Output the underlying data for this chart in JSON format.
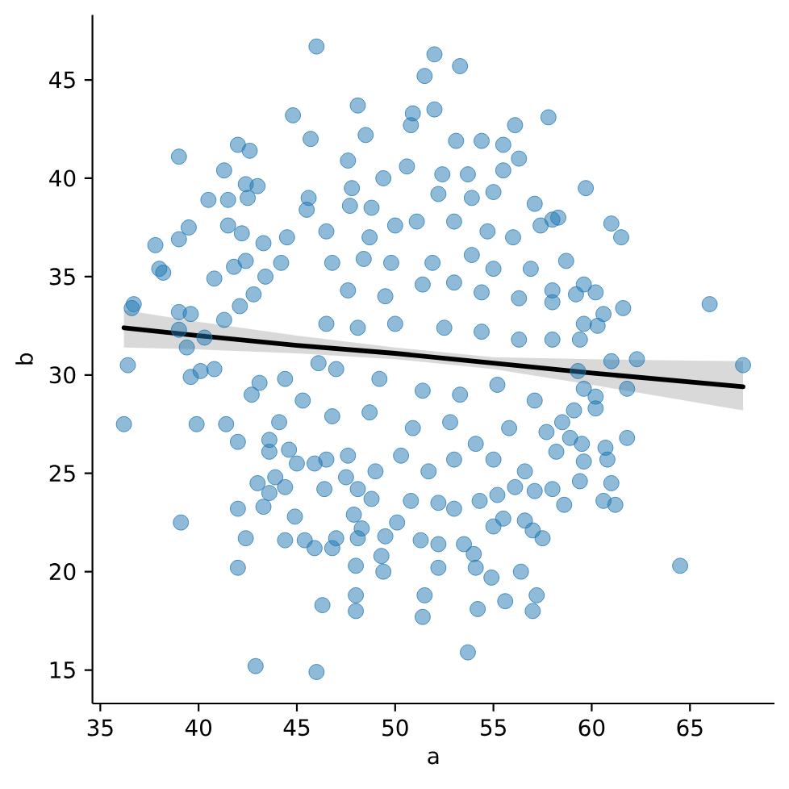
{
  "chart_data": {
    "type": "scatter",
    "xlabel": "a",
    "ylabel": "b",
    "xlim": [
      34.6,
      69.3
    ],
    "ylim": [
      13.3,
      48.3
    ],
    "xticks": [
      35,
      40,
      45,
      50,
      55,
      60,
      65
    ],
    "yticks": [
      15,
      20,
      25,
      30,
      35,
      40,
      45
    ],
    "marker": "circle",
    "series": [
      {
        "color": "#1f77b4",
        "x": [
          46.0,
          44.8,
          45.7,
          39.0,
          42.0,
          42.6,
          41.3,
          42.4,
          43.0,
          40.5,
          41.5,
          42.5,
          45.6,
          41.5,
          42.2,
          39.5,
          39.0,
          37.8,
          43.3,
          44.5,
          38.0,
          38.2,
          36.7,
          36.6,
          39.0,
          39.6,
          40.8,
          41.8,
          42.4,
          44.2,
          43.4,
          41.3,
          39.0,
          40.3,
          39.4,
          42.1,
          42.8,
          45.5,
          52.0,
          53.3,
          51.5,
          48.1,
          50.9,
          52.0,
          50.8,
          48.5,
          53.1,
          54.4,
          55.5,
          56.1,
          57.8,
          56.3,
          47.6,
          50.6,
          52.4,
          53.7,
          55.5,
          47.8,
          49.4,
          47.7,
          48.8,
          52.2,
          57.1,
          55.0,
          53.9,
          53.9,
          57.4,
          58.0,
          59.7,
          61.0,
          61.5,
          58.3,
          58.7,
          59.6,
          60.2,
          59.2,
          60.6,
          61.6,
          66.0,
          59.6,
          60.3,
          59.4,
          58.0,
          67.7,
          62.3,
          61.0,
          61.8,
          59.6,
          60.2,
          60.2,
          59.1,
          58.5,
          61.8,
          60.7,
          60.8,
          59.5,
          58.9,
          58.2,
          59.6,
          59.4,
          61.0,
          60.6,
          61.2,
          58.6,
          64.5,
          58.0,
          59.3,
          36.4,
          36.2,
          39.9,
          41.4,
          39.6,
          40.1,
          40.8,
          42.0,
          39.1,
          42.0,
          43.0,
          43.3,
          42.4,
          42.0,
          42.9,
          46.0,
          44.4,
          45.4,
          45.9,
          44.9,
          43.9,
          44.4,
          43.6,
          43.6,
          44.6,
          45.0,
          45.9,
          46.3,
          43.6,
          44.1,
          42.7,
          53.7,
          48.0,
          48.0,
          51.5,
          51.4,
          54.2,
          55.6,
          57.0,
          57.2,
          52.2,
          54.1,
          54.9,
          56.4,
          48.0,
          49.4,
          49.3,
          51.3,
          52.2,
          53.5,
          54.0,
          46.8,
          47.0,
          48.1,
          49.5,
          50.1,
          47.9,
          48.3,
          55.0,
          55.5,
          56.6,
          57.0,
          57.5,
          52.2,
          53.0,
          54.3,
          55.2,
          56.1,
          57.1,
          50.8,
          48.8,
          48.1,
          47.5,
          46.4,
          46.5,
          48.7,
          50.0,
          51.1,
          53.0,
          54.7,
          56.0,
          46.8,
          48.4,
          49.8,
          51.9,
          55.0,
          56.9,
          47.6,
          49.5,
          51.4,
          53.0,
          54.4,
          56.3,
          58.0,
          46.5,
          48.1,
          50.0,
          52.5,
          54.4,
          56.3,
          58.0,
          47.0,
          49.2,
          51.4,
          53.3,
          55.2,
          57.1,
          46.8,
          48.7,
          50.9,
          52.8,
          54.1,
          55.8,
          57.7,
          47.6,
          50.3,
          51.7,
          53.0,
          55.0,
          56.6,
          49.0,
          46.5,
          44.4,
          45.3,
          46.1,
          43.1
        ],
        "values": [
          46.7,
          43.2,
          42.0,
          41.1,
          41.7,
          41.4,
          40.4,
          39.7,
          39.6,
          38.9,
          38.9,
          39.0,
          39.0,
          37.6,
          37.2,
          37.5,
          36.9,
          36.6,
          36.7,
          37.0,
          35.4,
          35.2,
          33.6,
          33.4,
          33.2,
          33.1,
          34.9,
          35.5,
          35.8,
          35.7,
          35.0,
          32.8,
          32.3,
          31.9,
          31.4,
          33.5,
          34.1,
          38.4,
          46.3,
          45.7,
          45.2,
          43.7,
          43.3,
          43.5,
          42.7,
          42.2,
          41.9,
          41.9,
          41.7,
          42.7,
          43.1,
          41.0,
          40.9,
          40.6,
          40.2,
          40.2,
          40.4,
          39.5,
          40.0,
          38.6,
          38.5,
          39.2,
          38.7,
          39.3,
          39.0,
          36.1,
          37.6,
          37.9,
          39.5,
          37.7,
          37.0,
          38.0,
          35.8,
          34.6,
          34.2,
          34.1,
          33.1,
          33.4,
          33.6,
          32.6,
          32.5,
          31.8,
          33.7,
          30.5,
          30.8,
          30.7,
          29.3,
          29.3,
          28.9,
          28.3,
          28.2,
          27.6,
          26.8,
          26.3,
          25.7,
          26.5,
          26.8,
          26.1,
          25.6,
          24.6,
          24.5,
          23.6,
          23.4,
          23.4,
          20.3,
          24.2,
          30.2,
          30.5,
          27.5,
          27.5,
          27.5,
          29.9,
          30.2,
          30.3,
          26.6,
          22.5,
          23.2,
          24.5,
          23.3,
          21.7,
          20.2,
          15.2,
          14.9,
          21.6,
          21.6,
          21.2,
          22.8,
          24.8,
          24.3,
          24.0,
          26.1,
          26.2,
          25.5,
          25.5,
          18.3,
          26.7,
          27.6,
          29.0,
          15.9,
          18.8,
          18.0,
          18.8,
          17.7,
          18.1,
          18.5,
          18.0,
          18.8,
          20.2,
          20.2,
          19.7,
          20.0,
          20.3,
          20.0,
          20.8,
          21.6,
          21.4,
          21.4,
          20.9,
          21.2,
          21.7,
          21.7,
          21.8,
          22.5,
          22.9,
          22.2,
          22.3,
          22.7,
          22.6,
          22.1,
          21.7,
          23.5,
          23.2,
          23.6,
          23.9,
          24.3,
          24.1,
          23.6,
          23.7,
          24.2,
          24.8,
          24.2,
          37.3,
          37.0,
          37.6,
          37.8,
          37.8,
          37.3,
          37.0,
          35.7,
          35.9,
          35.7,
          35.7,
          35.4,
          35.4,
          34.3,
          34.0,
          34.6,
          34.7,
          34.2,
          33.9,
          34.3,
          32.6,
          32.4,
          32.6,
          32.4,
          32.2,
          31.8,
          31.8,
          30.3,
          29.8,
          29.2,
          29.0,
          29.5,
          28.7,
          27.9,
          28.1,
          27.3,
          27.6,
          26.5,
          27.3,
          27.1,
          25.9,
          25.9,
          25.1,
          25.7,
          25.7,
          25.1,
          25.1,
          25.7,
          29.8,
          28.7,
          30.6,
          29.6
        ]
      },
      {
        "type": "line",
        "color": "#000000",
        "marker": "none",
        "x": [
          36.2,
          40,
          45,
          50,
          55,
          60,
          67.7
        ],
        "values": [
          32.4,
          32.0,
          31.5,
          31.1,
          30.6,
          30.1,
          29.4
        ],
        "lower": [
          31.4,
          31.3,
          31.1,
          30.8,
          30.3,
          29.5,
          28.2
        ],
        "upper": [
          33.3,
          32.7,
          32.0,
          31.4,
          30.9,
          30.8,
          30.7
        ]
      }
    ]
  }
}
